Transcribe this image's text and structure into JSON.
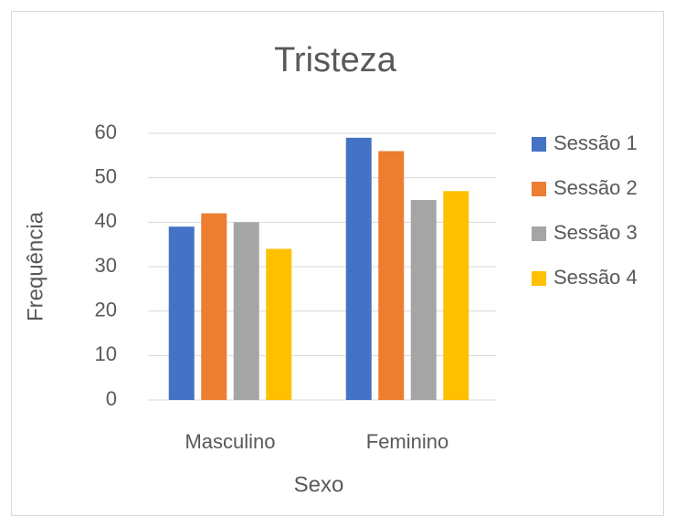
{
  "chart_data": {
    "type": "bar",
    "title": "Tristeza",
    "x_label": "Sexo",
    "y_label": "Frequência",
    "categories": [
      "Masculino",
      "Feminino"
    ],
    "series": [
      {
        "name": "Sessão 1",
        "color": "#4472c4",
        "values": [
          39,
          59
        ]
      },
      {
        "name": "Sessão 2",
        "color": "#ed7d31",
        "values": [
          42,
          56
        ]
      },
      {
        "name": "Sessão 3",
        "color": "#a5a5a5",
        "values": [
          40,
          45
        ]
      },
      {
        "name": "Sessão 4",
        "color": "#ffc000",
        "values": [
          34,
          47
        ]
      }
    ],
    "ylim": [
      0,
      60
    ],
    "yticks": [
      0,
      10,
      20,
      30,
      40,
      50,
      60
    ],
    "grid": true,
    "legend": "right"
  }
}
